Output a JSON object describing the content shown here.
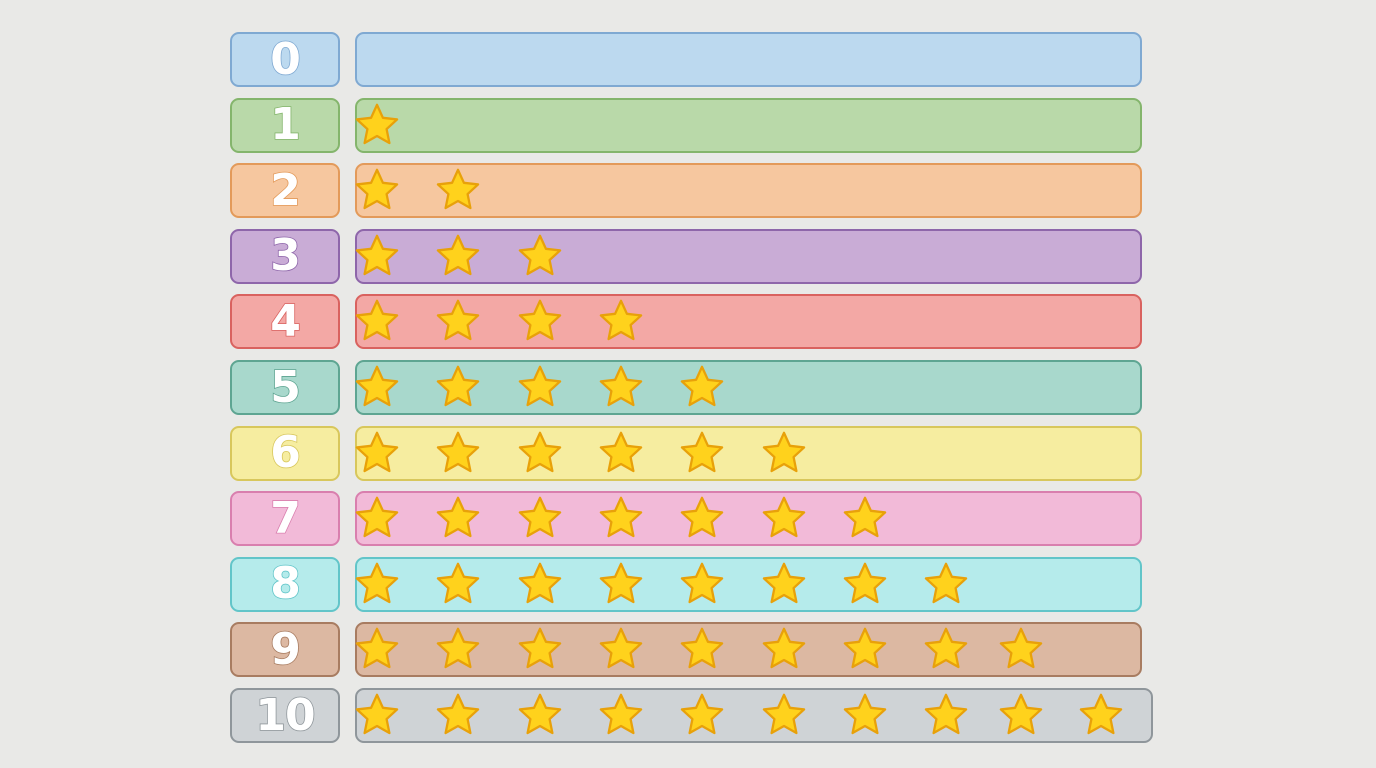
{
  "rows": [
    {
      "label": "0",
      "stars": 0,
      "fill": "#bcd9ef",
      "stroke": "#7fa9d2"
    },
    {
      "label": "1",
      "stars": 1,
      "fill": "#b9d9a9",
      "stroke": "#84b56c"
    },
    {
      "label": "2",
      "stars": 2,
      "fill": "#f6c79f",
      "stroke": "#e39a5a"
    },
    {
      "label": "3",
      "stars": 3,
      "fill": "#c9acd6",
      "stroke": "#8e66aa"
    },
    {
      "label": "4",
      "stars": 4,
      "fill": "#f3a8a5",
      "stroke": "#d9625f"
    },
    {
      "label": "5",
      "stars": 5,
      "fill": "#a8d8cc",
      "stroke": "#5ea592"
    },
    {
      "label": "6",
      "stars": 6,
      "fill": "#f6eda0",
      "stroke": "#d8c75c"
    },
    {
      "label": "7",
      "stars": 7,
      "fill": "#f2bad8",
      "stroke": "#d97fae"
    },
    {
      "label": "8",
      "stars": 8,
      "fill": "#b5ebeb",
      "stroke": "#62c5c9"
    },
    {
      "label": "9",
      "stars": 9,
      "fill": "#dcb8a2",
      "stroke": "#a87c61"
    },
    {
      "label": "10",
      "stars": 10,
      "fill": "#cfd3d6",
      "stroke": "#8f969b"
    }
  ],
  "star_colors": {
    "fill": "#ffd21c",
    "stroke": "#e8a10a"
  }
}
